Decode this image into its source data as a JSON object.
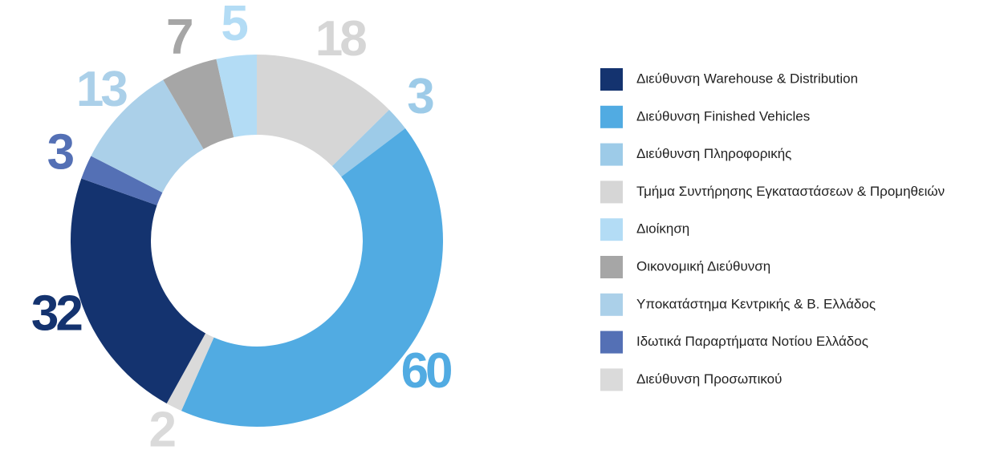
{
  "chart_data": {
    "type": "donut",
    "categories": [
      "Διεύθυνση Warehouse & Distribution",
      "Διεύθυνση Finished Vehicles",
      "Διεύθυνση Πληροφορικής",
      "Τμήμα Συντήρησης Εγκαταστάσεων & Προμηθειών",
      "Διοίκηση",
      "Οικονομική Διεύθυνση",
      "Υποκατάστημα Κεντρικής & Β. Ελλάδος",
      "Ιδωτικά Παραρτήματα Νοτίου Ελλάδος",
      "Διεύθυνση Προσωπικού"
    ],
    "values": [
      32,
      60,
      3,
      18,
      5,
      7,
      13,
      3,
      2
    ],
    "colors": [
      "#14336f",
      "#51abe2",
      "#9dcbe8",
      "#d6d6d6",
      "#b3dcf5",
      "#a6a6a6",
      "#abd0e9",
      "#5470b5",
      "#dadada"
    ],
    "legend": "right"
  }
}
